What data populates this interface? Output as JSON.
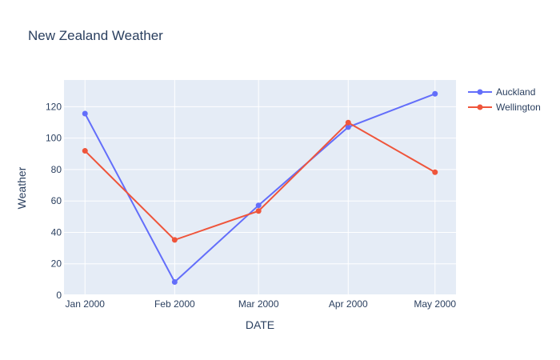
{
  "chart_data": {
    "type": "line",
    "title": "New Zealand Weather",
    "xlabel": "DATE",
    "ylabel": "Weather",
    "categories": [
      "Jan 2000",
      "Feb 2000",
      "Mar 2000",
      "Apr 2000",
      "May 2000"
    ],
    "x_dates": [
      "2000-01-01",
      "2000-02-01",
      "2000-03-01",
      "2000-04-01",
      "2000-05-01"
    ],
    "ylim": [
      0,
      137
    ],
    "yticks": [
      0,
      20,
      40,
      60,
      80,
      100,
      120
    ],
    "grid": true,
    "legend_position": "top-right",
    "series": [
      {
        "name": "Auckland",
        "color": "#636efa",
        "values": [
          115.6,
          8.4,
          57.2,
          107.0,
          128.2
        ]
      },
      {
        "name": "Wellington",
        "color": "#ef553b",
        "values": [
          91.9,
          35.2,
          53.6,
          109.9,
          78.3
        ]
      }
    ],
    "colors": {
      "plot_bg": "#e5ecf6",
      "grid": "#ffffff",
      "text": "#2a3f5f"
    }
  }
}
